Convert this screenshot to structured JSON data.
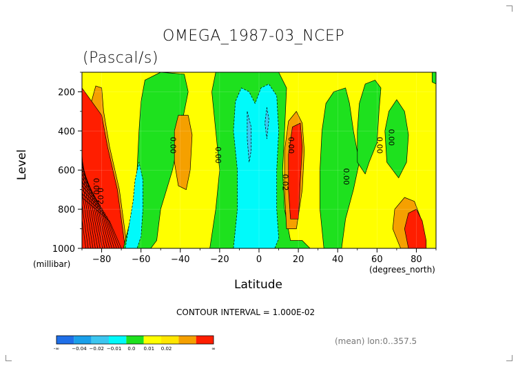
{
  "chart_data": {
    "type": "heatmap",
    "title": "OMEGA_1987-03_NCEP",
    "subtitle": "(Pascal/s)",
    "xlabel": "Latitude",
    "ylabel": "Level",
    "x_units": "(degrees_north)",
    "y_units": "(millibar)",
    "xlim": [
      -90,
      90
    ],
    "ylim": [
      1000,
      100
    ],
    "x_ticks": [
      -80,
      -60,
      -40,
      -20,
      0,
      20,
      40,
      60,
      80
    ],
    "y_ticks": [
      200,
      400,
      600,
      800,
      1000
    ],
    "contour_interval_label": "CONTOUR INTERVAL = 1.000E-02",
    "footnote": "(mean) lon:0..357.5",
    "contour_labels": [
      "0.00",
      "0.00",
      "0.00",
      "0.02",
      "0.00",
      "0.00",
      "0.00",
      "0.00",
      "0.02"
    ],
    "colorbar": {
      "labels": [
        "-∞",
        "−0.04",
        "−0.02",
        "−0.01",
        "0.0",
        "0.01",
        "0.02",
        "∞"
      ],
      "bins": [
        {
          "range": [
            "-inf",
            -0.04
          ],
          "color": "#1f6fe8"
        },
        {
          "range": [
            -0.04,
            -0.03
          ],
          "color": "#1aa0ea"
        },
        {
          "range": [
            -0.03,
            -0.02
          ],
          "color": "#3cc6f0"
        },
        {
          "range": [
            -0.02,
            -0.01
          ],
          "color": "#00fafa"
        },
        {
          "range": [
            -0.01,
            0.0
          ],
          "color": "#1ee11e"
        },
        {
          "range": [
            0.0,
            0.005
          ],
          "color": "#ffff00"
        },
        {
          "range": [
            0.005,
            0.01
          ],
          "color": "#ffe600"
        },
        {
          "range": [
            0.01,
            0.02
          ],
          "color": "#f5a000"
        },
        {
          "range": [
            0.02,
            "inf"
          ],
          "color": "#ff1e00"
        }
      ]
    },
    "background_color": "#ffff00",
    "regions": [
      {
        "level": "negative",
        "color": "#1ee11e",
        "points": [
          [
            -69,
            1000
          ],
          [
            -64,
            800
          ],
          [
            -62,
            600
          ],
          [
            -61,
            400
          ],
          [
            -60,
            250
          ],
          [
            -58,
            140
          ],
          [
            -50,
            100
          ],
          [
            -38,
            110
          ],
          [
            -36,
            200
          ],
          [
            -40,
            400
          ],
          [
            -44,
            600
          ],
          [
            -50,
            800
          ],
          [
            -52,
            960
          ],
          [
            -55,
            1000
          ]
        ]
      },
      {
        "level": "strong_negative",
        "color": "#00fafa",
        "points": [
          [
            -68,
            1000
          ],
          [
            -66,
            880
          ],
          [
            -64,
            760
          ],
          [
            -63,
            650
          ],
          [
            -61,
            560
          ],
          [
            -59,
            650
          ],
          [
            -59,
            800
          ],
          [
            -60,
            940
          ],
          [
            -62,
            1000
          ]
        ]
      },
      {
        "level": "positive",
        "color": "#f5a000",
        "points": [
          [
            -43,
            400
          ],
          [
            -41,
            320
          ],
          [
            -36,
            320
          ],
          [
            -34,
            420
          ],
          [
            -35,
            600
          ],
          [
            -37,
            700
          ],
          [
            -41,
            680
          ],
          [
            -43,
            560
          ]
        ]
      },
      {
        "level": "negative",
        "color": "#1ee11e",
        "points": [
          [
            -25,
            1000
          ],
          [
            -22,
            800
          ],
          [
            -20,
            600
          ],
          [
            -22,
            400
          ],
          [
            -24,
            200
          ],
          [
            -22,
            100
          ],
          [
            10,
            100
          ],
          [
            14,
            180
          ],
          [
            13,
            400
          ],
          [
            12,
            600
          ],
          [
            13,
            800
          ],
          [
            16,
            960
          ],
          [
            22,
            960
          ],
          [
            26,
            1000
          ]
        ]
      },
      {
        "level": "strong_negative",
        "color": "#00fafa",
        "points": [
          [
            -13,
            1000
          ],
          [
            -11,
            800
          ],
          [
            -11,
            600
          ],
          [
            -13,
            400
          ],
          [
            -12,
            250
          ],
          [
            -9,
            180
          ],
          [
            -5,
            200
          ],
          [
            -2,
            260
          ],
          [
            1,
            180
          ],
          [
            5,
            160
          ],
          [
            9,
            220
          ],
          [
            10,
            400
          ],
          [
            9,
            600
          ],
          [
            9,
            800
          ],
          [
            10,
            950
          ],
          [
            8,
            1000
          ]
        ]
      },
      {
        "level": "stronger_negative",
        "color": "#3cc6f0",
        "points": [
          [
            -6,
            300
          ],
          [
            -4,
            380
          ],
          [
            -4,
            500
          ],
          [
            -5,
            560
          ],
          [
            -6,
            440
          ]
        ]
      },
      {
        "level": "stronger_negative",
        "color": "#3cc6f0",
        "points": [
          [
            4,
            280
          ],
          [
            5,
            340
          ],
          [
            4,
            440
          ],
          [
            3,
            360
          ]
        ]
      },
      {
        "level": "positive",
        "color": "#f5a000",
        "points": [
          [
            14,
            900
          ],
          [
            13,
            700
          ],
          [
            13,
            500
          ],
          [
            15,
            350
          ],
          [
            19,
            300
          ],
          [
            22,
            360
          ],
          [
            23,
            500
          ],
          [
            22,
            700
          ],
          [
            19,
            900
          ]
        ]
      },
      {
        "level": "strong_positive",
        "color": "#ff1e00",
        "points": [
          [
            16,
            850
          ],
          [
            15,
            700
          ],
          [
            15,
            520
          ],
          [
            17,
            380
          ],
          [
            21,
            360
          ],
          [
            22,
            480
          ],
          [
            21,
            650
          ],
          [
            20,
            850
          ]
        ]
      },
      {
        "level": "negative",
        "color": "#1ee11e",
        "points": [
          [
            33,
            1000
          ],
          [
            31,
            800
          ],
          [
            31,
            600
          ],
          [
            32,
            400
          ],
          [
            34,
            260
          ],
          [
            38,
            200
          ],
          [
            44,
            180
          ],
          [
            46,
            260
          ],
          [
            48,
            400
          ],
          [
            51,
            560
          ],
          [
            48,
            700
          ],
          [
            44,
            850
          ],
          [
            42,
            1000
          ]
        ]
      },
      {
        "level": "negative",
        "color": "#1ee11e",
        "points": [
          [
            50,
            560
          ],
          [
            50,
            400
          ],
          [
            51,
            260
          ],
          [
            54,
            160
          ],
          [
            59,
            140
          ],
          [
            62,
            180
          ],
          [
            61,
            300
          ],
          [
            60,
            460
          ],
          [
            56,
            560
          ],
          [
            54,
            620
          ]
        ]
      },
      {
        "level": "negative",
        "color": "#1ee11e",
        "points": [
          [
            65,
            560
          ],
          [
            64,
            400
          ],
          [
            66,
            300
          ],
          [
            70,
            240
          ],
          [
            74,
            300
          ],
          [
            76,
            420
          ],
          [
            75,
            560
          ],
          [
            71,
            640
          ]
        ]
      },
      {
        "level": "positive",
        "color": "#f5a000",
        "points": [
          [
            72,
            1000
          ],
          [
            68,
            900
          ],
          [
            69,
            800
          ],
          [
            74,
            740
          ],
          [
            79,
            760
          ],
          [
            82,
            840
          ],
          [
            84,
            960
          ],
          [
            84,
            1000
          ]
        ]
      },
      {
        "level": "strong_positive",
        "color": "#ff1e00",
        "points": [
          [
            76,
            1000
          ],
          [
            74,
            900
          ],
          [
            76,
            820
          ],
          [
            80,
            800
          ],
          [
            83,
            860
          ],
          [
            85,
            960
          ],
          [
            85,
            1000
          ]
        ]
      },
      {
        "level": "negative",
        "color": "#1ee11e",
        "points": [
          [
            88,
            100
          ],
          [
            90,
            100
          ],
          [
            90,
            160
          ],
          [
            88,
            150
          ]
        ]
      }
    ]
  }
}
